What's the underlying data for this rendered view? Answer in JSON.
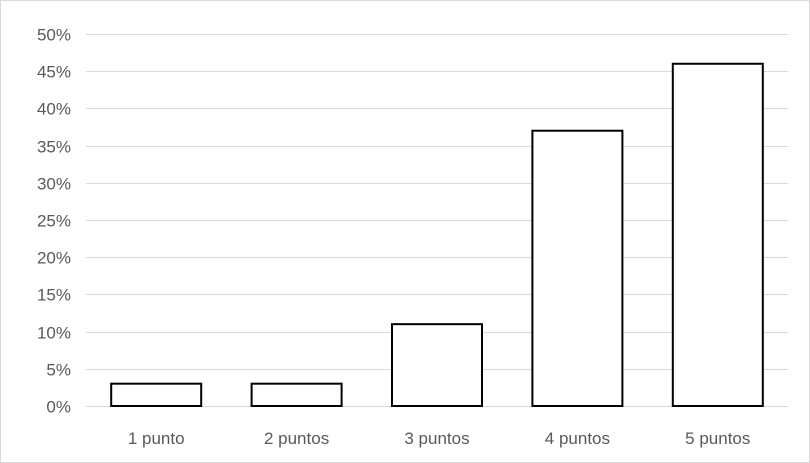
{
  "chart_data": {
    "type": "bar",
    "title": "",
    "xlabel": "",
    "ylabel": "",
    "categories": [
      "1 punto",
      "2 puntos",
      "3 puntos",
      "4 puntos",
      "5 puntos"
    ],
    "values": [
      0.03,
      0.03,
      0.11,
      0.37,
      0.46
    ],
    "ylim": [
      0,
      0.5
    ],
    "y_ticks": [
      0,
      0.05,
      0.1,
      0.15,
      0.2,
      0.25,
      0.3,
      0.35,
      0.4,
      0.45,
      0.5
    ],
    "y_tick_labels": [
      "0%",
      "5%",
      "10%",
      "15%",
      "20%",
      "25%",
      "30%",
      "35%",
      "40%",
      "45%",
      "50%"
    ],
    "grid": true,
    "legend": "none",
    "colors": {
      "bar_fill": "#ffffff",
      "bar_stroke": "#000000",
      "grid": "#d9d9d9",
      "axis": "#d9d9d9",
      "text": "#595959"
    }
  }
}
